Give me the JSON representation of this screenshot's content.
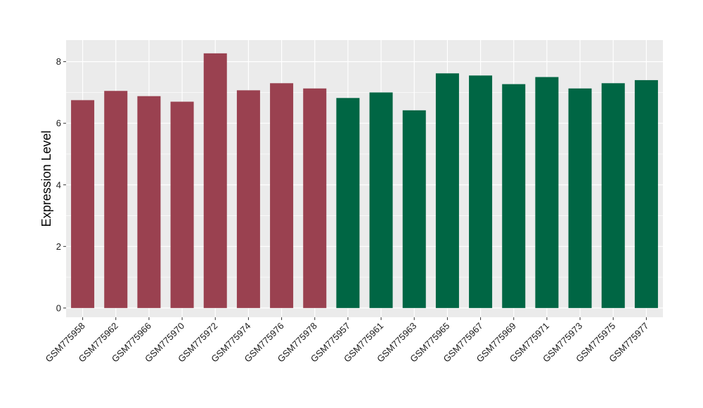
{
  "chart_data": {
    "type": "bar",
    "title": "",
    "xlabel": "",
    "ylabel": "Expression Level",
    "ylim": [
      -0.3,
      8.7
    ],
    "yticks": [
      0,
      2,
      4,
      6,
      8
    ],
    "grid": true,
    "categories": [
      "GSM775958",
      "GSM775962",
      "GSM775966",
      "GSM775970",
      "GSM775972",
      "GSM775974",
      "GSM775976",
      "GSM775978",
      "GSM775957",
      "GSM775961",
      "GSM775963",
      "GSM775965",
      "GSM775967",
      "GSM775969",
      "GSM775971",
      "GSM775973",
      "GSM775975",
      "GSM775977"
    ],
    "values": [
      6.75,
      7.05,
      6.88,
      6.7,
      8.27,
      7.07,
      7.3,
      7.13,
      6.82,
      7.0,
      6.42,
      7.62,
      7.55,
      7.27,
      7.5,
      7.13,
      7.3,
      7.4
    ],
    "group_colors": {
      "group_1": "#9a4150",
      "group_2": "#006644"
    },
    "groups": [
      "group_1",
      "group_1",
      "group_1",
      "group_1",
      "group_1",
      "group_1",
      "group_1",
      "group_1",
      "group_2",
      "group_2",
      "group_2",
      "group_2",
      "group_2",
      "group_2",
      "group_2",
      "group_2",
      "group_2",
      "group_2"
    ],
    "panel_background": "#ebebeb",
    "gridline_color": "#ffffff"
  }
}
